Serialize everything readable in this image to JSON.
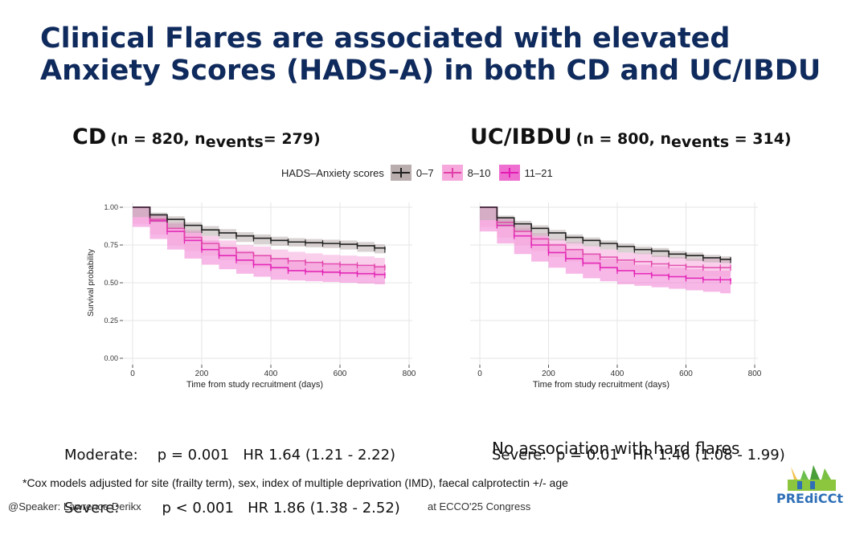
{
  "title": {
    "line1": "Clinical Flares are associated with elevated",
    "line2": "Anxiety Scores (HADS-A) in both CD and UC/IBDU"
  },
  "panels": {
    "cd": {
      "name": "CD",
      "n_text": "(n = 820, n",
      "events_sub": "events",
      "events_text": "= 279)"
    },
    "uc": {
      "name": "UC/IBDU",
      "n_text": "(n = 800, n",
      "events_sub": "events",
      "events_text": " = 314)"
    }
  },
  "legend": {
    "title": "HADS–Anxiety scores",
    "items": [
      {
        "label": "0–7",
        "line_color": "#222222",
        "band_color": "#b9adad"
      },
      {
        "label": "8–10",
        "line_color": "#e040a8",
        "band_color": "#f6a8dc"
      },
      {
        "label": "11–21",
        "line_color": "#e21cb4",
        "band_color": "#ef6fd0"
      }
    ]
  },
  "stats": {
    "cd": [
      {
        "label": "Moderate:",
        "text": " p = 0.001   HR 1.64 (1.21 - 2.22)"
      },
      {
        "label": "Severe:",
        "text": "  p < 0.001   HR 1.86 (1.38 - 2.52)"
      }
    ],
    "uc": [
      {
        "label": "Severe:",
        "text": "  p = 0.01   HR 1.46 (1.08 - 1.99)"
      }
    ],
    "uc_note": "No association with hard flares"
  },
  "footnote": "*Cox models adjusted for site (frailty term), sex, index of multiple deprivation (IMD), faecal calprotectin +/- age",
  "speaker": "@Speaker:  Lawrence Derikx",
  "congress": "at ECCO'25 Congress",
  "logo_text": "PREdiCCt",
  "chart_data": [
    {
      "type": "line",
      "panel": "CD",
      "xlabel": "Time from study recruitment (days)",
      "ylabel": "Survival probability",
      "xlim": [
        0,
        800
      ],
      "ylim": [
        0,
        1
      ],
      "xticks": [
        0,
        200,
        400,
        600,
        800
      ],
      "yticks": [
        "0.00",
        "0.25",
        "0.50",
        "0.75",
        "1.00"
      ],
      "grid": true,
      "legend_position": "top",
      "series": [
        {
          "name": "0–7",
          "x": [
            0,
            50,
            100,
            150,
            200,
            250,
            300,
            350,
            400,
            450,
            500,
            550,
            600,
            650,
            700,
            730
          ],
          "y": [
            1.0,
            0.95,
            0.92,
            0.88,
            0.85,
            0.83,
            0.81,
            0.795,
            0.78,
            0.77,
            0.765,
            0.76,
            0.755,
            0.745,
            0.73,
            0.72
          ],
          "lower": [
            1.0,
            0.935,
            0.9,
            0.86,
            0.83,
            0.81,
            0.79,
            0.77,
            0.755,
            0.745,
            0.74,
            0.735,
            0.73,
            0.72,
            0.705,
            0.695
          ],
          "upper": [
            1.0,
            0.965,
            0.94,
            0.9,
            0.875,
            0.855,
            0.835,
            0.82,
            0.805,
            0.795,
            0.79,
            0.785,
            0.78,
            0.77,
            0.755,
            0.745
          ]
        },
        {
          "name": "8–10",
          "x": [
            0,
            50,
            100,
            150,
            200,
            250,
            300,
            350,
            400,
            450,
            500,
            550,
            600,
            650,
            700,
            730
          ],
          "y": [
            1.0,
            0.92,
            0.86,
            0.8,
            0.76,
            0.73,
            0.7,
            0.68,
            0.66,
            0.645,
            0.635,
            0.625,
            0.62,
            0.615,
            0.605,
            0.6
          ],
          "lower": [
            1.0,
            0.89,
            0.82,
            0.75,
            0.71,
            0.68,
            0.65,
            0.62,
            0.6,
            0.585,
            0.575,
            0.565,
            0.56,
            0.555,
            0.545,
            0.54
          ],
          "upper": [
            1.0,
            0.95,
            0.9,
            0.85,
            0.81,
            0.78,
            0.75,
            0.74,
            0.72,
            0.705,
            0.695,
            0.685,
            0.68,
            0.675,
            0.665,
            0.66
          ]
        },
        {
          "name": "11–21",
          "x": [
            0,
            50,
            100,
            150,
            200,
            250,
            300,
            350,
            400,
            450,
            500,
            550,
            600,
            650,
            700,
            730
          ],
          "y": [
            1.0,
            0.91,
            0.84,
            0.78,
            0.72,
            0.68,
            0.65,
            0.62,
            0.6,
            0.58,
            0.575,
            0.57,
            0.565,
            0.56,
            0.555,
            0.55
          ],
          "lower": [
            1.0,
            0.87,
            0.79,
            0.72,
            0.66,
            0.62,
            0.59,
            0.56,
            0.54,
            0.52,
            0.515,
            0.51,
            0.505,
            0.5,
            0.495,
            0.49
          ],
          "upper": [
            1.0,
            0.95,
            0.89,
            0.84,
            0.78,
            0.74,
            0.71,
            0.68,
            0.66,
            0.64,
            0.635,
            0.63,
            0.625,
            0.62,
            0.615,
            0.61
          ]
        }
      ]
    },
    {
      "type": "line",
      "panel": "UC/IBDU",
      "xlabel": "Time from study recruitment (days)",
      "ylabel": "",
      "xlim": [
        0,
        800
      ],
      "ylim": [
        0,
        1
      ],
      "xticks": [
        0,
        200,
        400,
        600,
        800
      ],
      "grid": true,
      "series": [
        {
          "name": "0–7",
          "x": [
            0,
            50,
            100,
            150,
            200,
            250,
            300,
            350,
            400,
            450,
            500,
            550,
            600,
            650,
            700,
            730
          ],
          "y": [
            1.0,
            0.93,
            0.89,
            0.86,
            0.83,
            0.8,
            0.78,
            0.76,
            0.74,
            0.72,
            0.71,
            0.69,
            0.68,
            0.665,
            0.655,
            0.65
          ],
          "lower": [
            1.0,
            0.915,
            0.87,
            0.84,
            0.81,
            0.78,
            0.76,
            0.74,
            0.72,
            0.7,
            0.69,
            0.67,
            0.66,
            0.645,
            0.635,
            0.63
          ],
          "upper": [
            1.0,
            0.945,
            0.91,
            0.88,
            0.85,
            0.82,
            0.8,
            0.78,
            0.76,
            0.74,
            0.73,
            0.71,
            0.7,
            0.685,
            0.675,
            0.67
          ]
        },
        {
          "name": "8–10",
          "x": [
            0,
            50,
            100,
            150,
            200,
            250,
            300,
            350,
            400,
            450,
            500,
            550,
            600,
            650,
            700,
            730
          ],
          "y": [
            1.0,
            0.9,
            0.84,
            0.79,
            0.75,
            0.72,
            0.69,
            0.67,
            0.65,
            0.64,
            0.625,
            0.615,
            0.605,
            0.6,
            0.6,
            0.6
          ],
          "lower": [
            1.0,
            0.87,
            0.8,
            0.75,
            0.71,
            0.67,
            0.64,
            0.62,
            0.6,
            0.585,
            0.57,
            0.56,
            0.55,
            0.54,
            0.54,
            0.54
          ],
          "upper": [
            1.0,
            0.93,
            0.88,
            0.83,
            0.79,
            0.77,
            0.74,
            0.72,
            0.7,
            0.695,
            0.68,
            0.67,
            0.66,
            0.66,
            0.66,
            0.66
          ]
        },
        {
          "name": "11–21",
          "x": [
            0,
            50,
            100,
            150,
            200,
            250,
            300,
            350,
            400,
            450,
            500,
            550,
            600,
            650,
            700,
            730
          ],
          "y": [
            1.0,
            0.88,
            0.81,
            0.75,
            0.7,
            0.66,
            0.63,
            0.6,
            0.58,
            0.56,
            0.55,
            0.54,
            0.53,
            0.52,
            0.52,
            0.51
          ],
          "lower": [
            1.0,
            0.84,
            0.76,
            0.69,
            0.64,
            0.6,
            0.56,
            0.53,
            0.51,
            0.49,
            0.48,
            0.47,
            0.46,
            0.45,
            0.44,
            0.43
          ],
          "upper": [
            1.0,
            0.92,
            0.86,
            0.81,
            0.76,
            0.72,
            0.69,
            0.66,
            0.64,
            0.62,
            0.61,
            0.6,
            0.59,
            0.58,
            0.58,
            0.57
          ]
        }
      ]
    }
  ]
}
